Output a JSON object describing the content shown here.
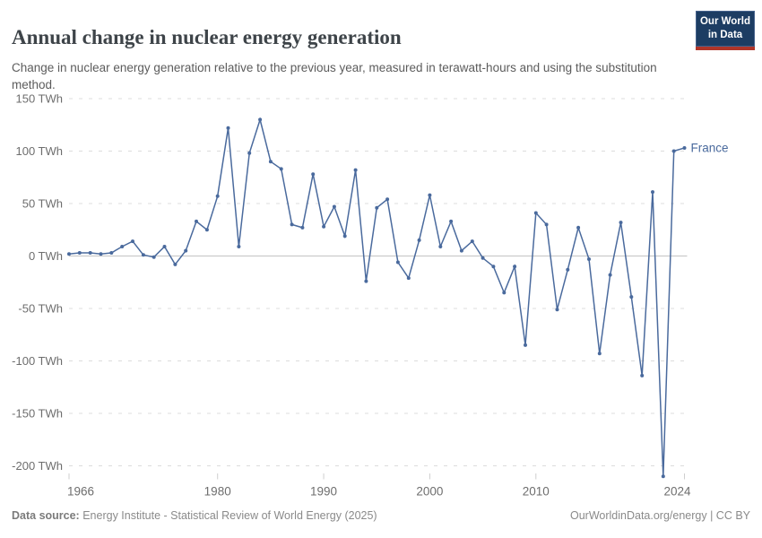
{
  "header": {
    "title": "Annual change in nuclear energy generation",
    "subtitle": "Change in nuclear energy generation relative to the previous year, measured in terawatt-hours and using the substitution method.",
    "logo": {
      "line1": "Our World",
      "line2": "in Data"
    }
  },
  "chart_data": {
    "type": "line",
    "title": "Annual change in nuclear energy generation",
    "subtitle": "Change in nuclear energy generation relative to the previous year, measured in terawatt-hours and using the substitution method.",
    "xlabel": "",
    "ylabel": "TWh",
    "xlim": [
      1966,
      2024
    ],
    "ylim": [
      -215,
      155
    ],
    "grid": "horizontal-dashed",
    "legend": "end-of-line-label",
    "x_ticks": [
      1966,
      1980,
      1990,
      2000,
      2010,
      2024
    ],
    "y_ticks": [
      {
        "value": 150,
        "label": "150 TWh"
      },
      {
        "value": 100,
        "label": "100 TWh"
      },
      {
        "value": 50,
        "label": "50 TWh"
      },
      {
        "value": 0,
        "label": "0 TWh"
      },
      {
        "value": -50,
        "label": "-50 TWh"
      },
      {
        "value": -100,
        "label": "-100 TWh"
      },
      {
        "value": -150,
        "label": "-150 TWh"
      },
      {
        "value": -200,
        "label": "-200 TWh"
      }
    ],
    "series": [
      {
        "name": "France",
        "color": "#4a6a9d",
        "x": [
          1966,
          1967,
          1968,
          1969,
          1970,
          1971,
          1972,
          1973,
          1974,
          1975,
          1976,
          1977,
          1978,
          1979,
          1980,
          1981,
          1982,
          1983,
          1984,
          1985,
          1986,
          1987,
          1988,
          1989,
          1990,
          1991,
          1992,
          1993,
          1994,
          1995,
          1996,
          1997,
          1998,
          1999,
          2000,
          2001,
          2002,
          2003,
          2004,
          2005,
          2006,
          2007,
          2008,
          2009,
          2010,
          2011,
          2012,
          2013,
          2014,
          2015,
          2016,
          2017,
          2018,
          2019,
          2020,
          2021,
          2022,
          2023,
          2024
        ],
        "values": [
          2,
          3,
          3,
          2,
          3,
          9,
          14,
          1,
          -1,
          9,
          -8,
          5,
          33,
          25,
          57,
          122,
          9,
          98,
          130,
          90,
          83,
          30,
          27,
          78,
          28,
          47,
          19,
          82,
          -24,
          46,
          54,
          -6,
          -21,
          15,
          58,
          9,
          33,
          5,
          14,
          -2,
          -10,
          -35,
          -10,
          -85,
          41,
          30,
          -51,
          -13,
          27,
          -3,
          -93,
          -18,
          32,
          -39,
          -114,
          61,
          -210,
          100,
          103
        ]
      }
    ]
  },
  "footer": {
    "source_label": "Data source:",
    "source_text": " Energy Institute - Statistical Review of World Energy (2025)",
    "credit": "OurWorldinData.org/energy | CC BY"
  }
}
